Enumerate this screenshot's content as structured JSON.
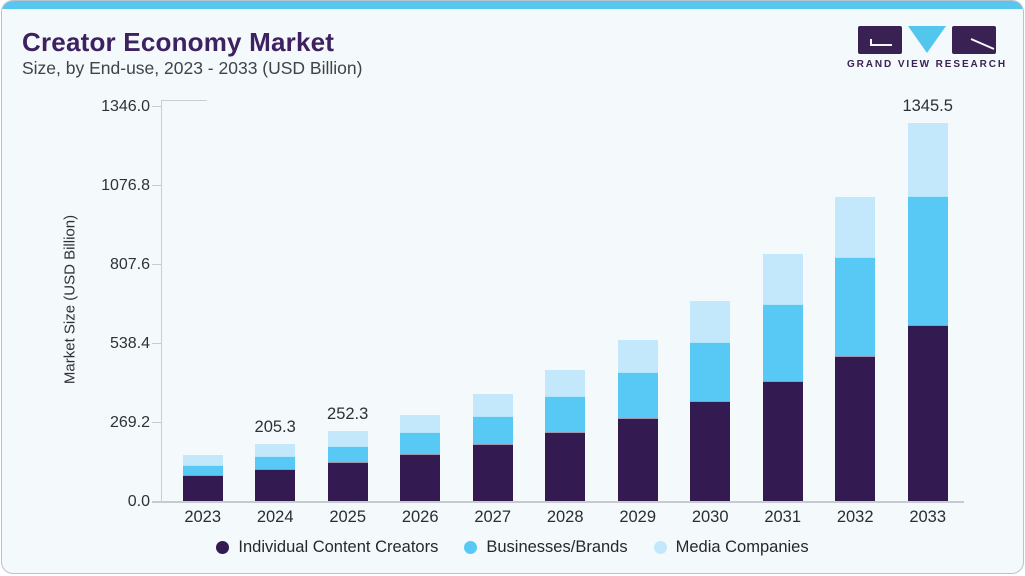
{
  "header": {
    "title": "Creator Economy Market",
    "subtitle": "Size, by End-use, 2023 - 2033 (USD Billion)"
  },
  "logo": {
    "wordmark": "GRAND VIEW RESEARCH",
    "purple": "#3a2153",
    "blue": "#53c6ee"
  },
  "chart_data": {
    "type": "bar",
    "stacked": true,
    "title": "Creator Economy Market Size, by End-use, 2023 - 2033 (USD Billion)",
    "xlabel": "",
    "ylabel": "Market Size (USD Billion)",
    "categories": [
      "2023",
      "2024",
      "2025",
      "2026",
      "2027",
      "2028",
      "2029",
      "2030",
      "2031",
      "2032",
      "2033"
    ],
    "series": [
      {
        "name": "Individual Content Creators",
        "color": "#331a50",
        "values": [
          93,
          116,
          140,
          169,
          203,
          246,
          297,
          356,
          430,
          519,
          629
        ]
      },
      {
        "name": "Businesses/Brands",
        "color": "#58c9f4",
        "values": [
          37,
          45,
          57,
          78,
          101,
          129,
          164,
          212,
          272,
          351,
          458
        ]
      },
      {
        "name": "Media Companies",
        "color": "#c3e8fb",
        "values": [
          36,
          44.3,
          55.3,
          61,
          77,
          94,
          115,
          144,
          178,
          215,
          258.5
        ]
      }
    ],
    "totals_labeled": {
      "2024": "205.3",
      "2025": "252.3",
      "2033": "1345.5"
    },
    "y_ticks": [
      "0.0",
      "269.2",
      "538.4",
      "807.6",
      "1076.8",
      "1346.0"
    ],
    "ylim": [
      0,
      1346
    ],
    "grid": false,
    "legend_position": "bottom"
  }
}
